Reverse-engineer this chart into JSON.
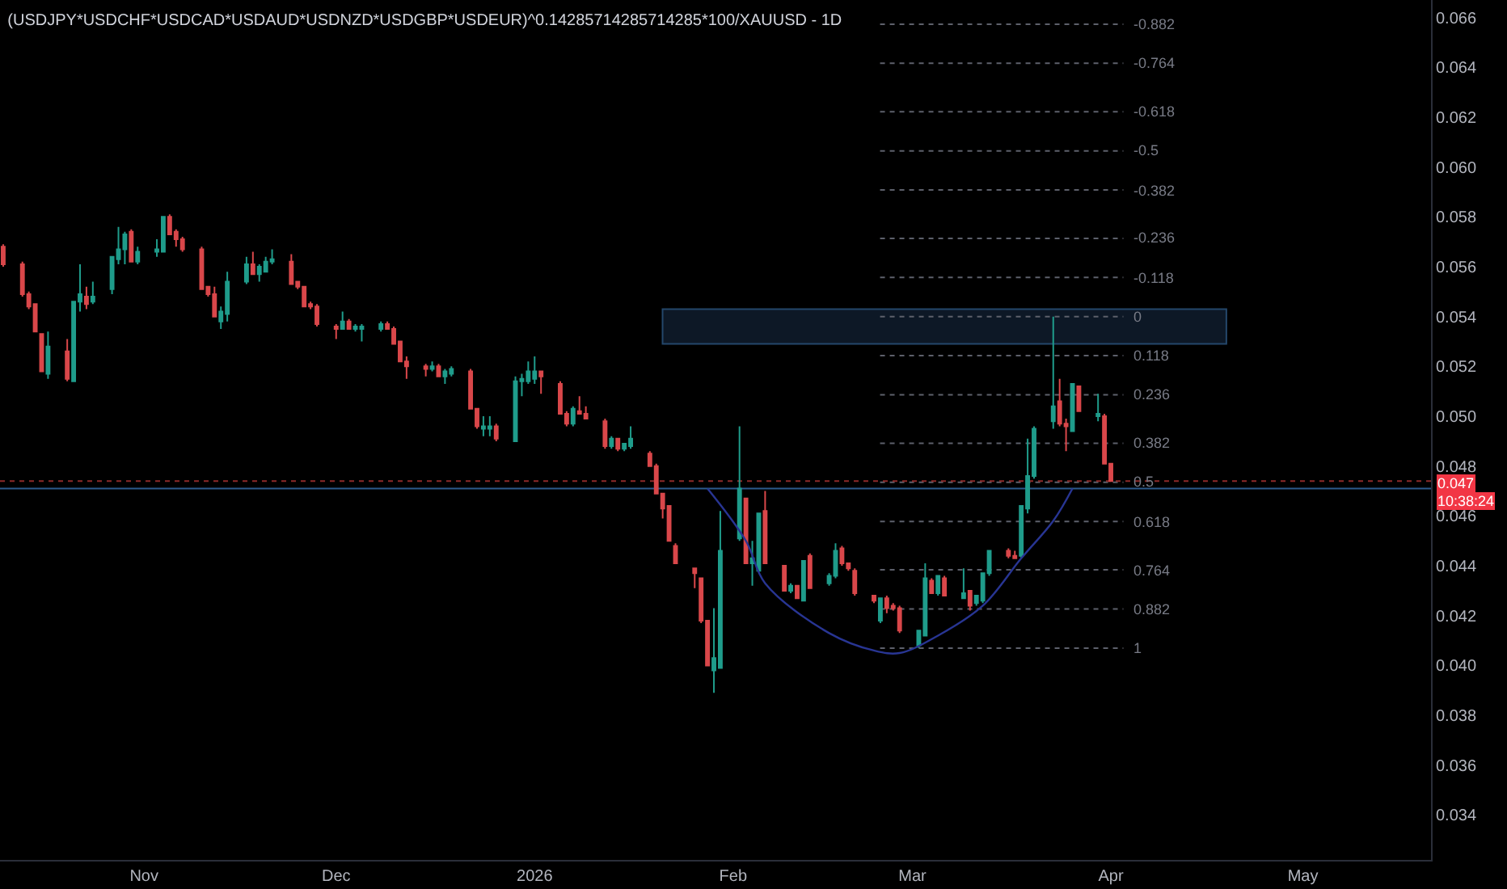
{
  "chart_data": {
    "type": "candlestick",
    "title": "(USDJPY*USDCHF*USDCAD*USDAUD*USDNZD*USDGBP*USDEUR)^0.14285714285714285*100/XAUUSD - 1D",
    "x": [
      "2025-10-10",
      "2025-10-13",
      "2025-10-14",
      "2025-10-15",
      "2025-10-16",
      "2025-10-17",
      "2025-10-20",
      "2025-10-21",
      "2025-10-22",
      "2025-10-23",
      "2025-10-24",
      "2025-10-27",
      "2025-10-28",
      "2025-10-29",
      "2025-10-30",
      "2025-10-31",
      "2025-11-03",
      "2025-11-04",
      "2025-11-05",
      "2025-11-06",
      "2025-11-07",
      "2025-11-10",
      "2025-11-11",
      "2025-11-12",
      "2025-11-13",
      "2025-11-14",
      "2025-11-17",
      "2025-11-18",
      "2025-11-19",
      "2025-11-20",
      "2025-11-21",
      "2025-11-24",
      "2025-11-25",
      "2025-11-26",
      "2025-11-27",
      "2025-11-28",
      "2025-12-01",
      "2025-12-02",
      "2025-12-03",
      "2025-12-04",
      "2025-12-05",
      "2025-12-08",
      "2025-12-09",
      "2025-12-10",
      "2025-12-11",
      "2025-12-12",
      "2025-12-15",
      "2025-12-16",
      "2025-12-17",
      "2025-12-18",
      "2025-12-19",
      "2025-12-22",
      "2025-12-23",
      "2025-12-24",
      "2025-12-25",
      "2025-12-26",
      "2025-12-29",
      "2025-12-30",
      "2025-12-31",
      "2026-01-01",
      "2026-01-02",
      "2026-01-05",
      "2026-01-06",
      "2026-01-07",
      "2026-01-08",
      "2026-01-09",
      "2026-01-12",
      "2026-01-13",
      "2026-01-14",
      "2026-01-15",
      "2026-01-16",
      "2026-01-19",
      "2026-01-20",
      "2026-01-21",
      "2026-01-22",
      "2026-01-23",
      "2026-01-26",
      "2026-01-27",
      "2026-01-28",
      "2026-01-29",
      "2026-01-30",
      "2026-02-02",
      "2026-02-03",
      "2026-02-04",
      "2026-02-05",
      "2026-02-06",
      "2026-02-09",
      "2026-02-10",
      "2026-02-11",
      "2026-02-12",
      "2026-02-13",
      "2026-02-16",
      "2026-02-17",
      "2026-02-18",
      "2026-02-19",
      "2026-02-20",
      "2026-02-23",
      "2026-02-24",
      "2026-02-25",
      "2026-02-26",
      "2026-02-27",
      "2026-03-02",
      "2026-03-03",
      "2026-03-04",
      "2026-03-05",
      "2026-03-06",
      "2026-03-09",
      "2026-03-10",
      "2026-03-11",
      "2026-03-12",
      "2026-03-13",
      "2026-03-16",
      "2026-03-17",
      "2026-03-18",
      "2026-03-19",
      "2026-03-20",
      "2026-03-23",
      "2026-03-24",
      "2026-03-25",
      "2026-03-26",
      "2026-03-27",
      "2026-03-30",
      "2026-03-31",
      "2026-04-01"
    ],
    "ohlc": [
      [
        0.0568,
        0.0569,
        0.056,
        0.0561
      ],
      [
        0.0561,
        0.0562,
        0.0548,
        0.0549
      ],
      [
        0.0549,
        0.055,
        0.0543,
        0.0544
      ],
      [
        0.0545,
        0.0545,
        0.0534,
        0.0534
      ],
      [
        0.0533,
        0.0533,
        0.0518,
        0.0518
      ],
      [
        0.0517,
        0.0534,
        0.0515,
        0.0528
      ],
      [
        0.0526,
        0.0531,
        0.0514,
        0.0515
      ],
      [
        0.0514,
        0.0546,
        0.0514,
        0.0546
      ],
      [
        0.0546,
        0.0561,
        0.0542,
        0.0549
      ],
      [
        0.0548,
        0.0552,
        0.0543,
        0.0545
      ],
      [
        0.0546,
        0.0554,
        0.0545,
        0.0548
      ],
      [
        0.0551,
        0.0564,
        0.0549,
        0.0564
      ],
      [
        0.0563,
        0.0576,
        0.0561,
        0.0567
      ],
      [
        0.0567,
        0.0574,
        0.0561,
        0.0573
      ],
      [
        0.0574,
        0.0575,
        0.0562,
        0.0562
      ],
      [
        0.0562,
        0.0568,
        0.0561,
        0.0566
      ],
      [
        0.0566,
        0.0571,
        0.0564,
        0.0567
      ],
      [
        0.0566,
        0.058,
        0.0566,
        0.058
      ],
      [
        0.058,
        0.0581,
        0.0573,
        0.0573
      ],
      [
        0.0574,
        0.0575,
        0.0568,
        0.0571
      ],
      [
        0.0571,
        0.0572,
        0.0566,
        0.0567
      ],
      [
        0.0567,
        0.0568,
        0.0551,
        0.0551
      ],
      [
        0.0552,
        0.0552,
        0.0548,
        0.0549
      ],
      [
        0.0549,
        0.0552,
        0.054,
        0.054
      ],
      [
        0.0538,
        0.0544,
        0.0535,
        0.0542
      ],
      [
        0.0541,
        0.0558,
        0.0538,
        0.0554
      ],
      [
        0.0554,
        0.0564,
        0.0553,
        0.0561
      ],
      [
        0.0561,
        0.0566,
        0.0557,
        0.0557
      ],
      [
        0.0557,
        0.0561,
        0.0554,
        0.056
      ],
      [
        0.0558,
        0.0564,
        0.0558,
        0.0562
      ],
      [
        0.0562,
        0.0567,
        0.0561,
        0.0563
      ],
      [
        0.0562,
        0.0565,
        0.0553,
        0.0553
      ],
      [
        0.0554,
        0.0554,
        0.0551,
        0.0552
      ],
      [
        0.0552,
        0.0552,
        0.0544,
        0.0544
      ],
      [
        0.0545,
        0.0546,
        0.0543,
        0.0544
      ],
      [
        0.0544,
        0.0545,
        0.0536,
        0.0537
      ],
      [
        0.0536,
        0.0537,
        0.0531,
        0.0535
      ],
      [
        0.0535,
        0.0542,
        0.0535,
        0.0538
      ],
      [
        0.0538,
        0.0539,
        0.0535,
        0.0535
      ],
      [
        0.0535,
        0.0537,
        0.0534,
        0.0536
      ],
      [
        0.0535,
        0.0537,
        0.053,
        0.0536
      ],
      [
        0.0535,
        0.0538,
        0.0534,
        0.0537
      ],
      [
        0.0537,
        0.0538,
        0.0535,
        0.0535
      ],
      [
        0.0535,
        0.0536,
        0.0529,
        0.0529
      ],
      [
        0.053,
        0.053,
        0.0522,
        0.0522
      ],
      [
        0.0522,
        0.0524,
        0.0515,
        0.052
      ],
      [
        0.052,
        0.0521,
        0.0516,
        0.0519
      ],
      [
        0.0519,
        0.0522,
        0.0518,
        0.052
      ],
      [
        0.052,
        0.0521,
        0.0516,
        0.0516
      ],
      [
        0.0516,
        0.0519,
        0.0513,
        0.0518
      ],
      [
        0.0517,
        0.052,
        0.0516,
        0.0519
      ],
      [
        0.0518,
        0.0519,
        0.0503,
        0.0503
      ],
      [
        0.0503,
        0.0503,
        0.0495,
        0.0496
      ],
      [
        0.0495,
        0.05,
        0.0492,
        0.0496
      ],
      [
        0.0495,
        0.05,
        0.0492,
        0.0496
      ],
      [
        0.0496,
        0.0497,
        0.049,
        0.0491
      ],
      [
        0.049,
        0.0516,
        0.049,
        0.0514
      ],
      [
        0.0514,
        0.0517,
        0.0508,
        0.0515
      ],
      [
        0.0514,
        0.0522,
        0.0513,
        0.0518
      ],
      [
        0.0515,
        0.0524,
        0.0513,
        0.0518
      ],
      [
        0.0518,
        0.0518,
        0.0509,
        0.0516
      ],
      [
        0.0513,
        0.0514,
        0.0501,
        0.0501
      ],
      [
        0.0501,
        0.0502,
        0.0496,
        0.0497
      ],
      [
        0.0497,
        0.0504,
        0.0496,
        0.0503
      ],
      [
        0.0502,
        0.0508,
        0.0501,
        0.0501
      ],
      [
        0.0501,
        0.0504,
        0.0499,
        0.0499
      ],
      [
        0.0498,
        0.0499,
        0.0487,
        0.0488
      ],
      [
        0.0488,
        0.0492,
        0.0487,
        0.0491
      ],
      [
        0.0491,
        0.0491,
        0.0486,
        0.0487
      ],
      [
        0.0487,
        0.0489,
        0.0486,
        0.0489
      ],
      [
        0.0488,
        0.0496,
        0.0487,
        0.0491
      ],
      [
        0.0485,
        0.0486,
        0.048,
        0.048
      ],
      [
        0.048,
        0.0481,
        0.0469,
        0.0469
      ],
      [
        0.0469,
        0.0469,
        0.0459,
        0.0463
      ],
      [
        0.0464,
        0.0464,
        0.045,
        0.045
      ],
      [
        0.0448,
        0.0449,
        0.0441,
        0.0441
      ],
      [
        0.0439,
        0.0439,
        0.0431,
        0.0437
      ],
      [
        0.0435,
        0.0435,
        0.0417,
        0.0418
      ],
      [
        0.0418,
        0.0418,
        0.04,
        0.04
      ],
      [
        0.0398,
        0.0423,
        0.0389,
        0.0403
      ],
      [
        0.0399,
        0.0462,
        0.0399,
        0.0446
      ],
      [
        0.0451,
        0.0496,
        0.045,
        0.0471
      ],
      [
        0.0467,
        0.0467,
        0.0441,
        0.0441
      ],
      [
        0.0441,
        0.045,
        0.0432,
        0.0443
      ],
      [
        0.0438,
        0.0461,
        0.0438,
        0.0461
      ],
      [
        0.0462,
        0.047,
        0.0441,
        0.0441
      ],
      [
        0.044,
        0.044,
        0.043,
        0.043
      ],
      [
        0.043,
        0.0433,
        0.0429,
        0.0432
      ],
      [
        0.0432,
        0.0432,
        0.0427,
        0.0427
      ],
      [
        0.0426,
        0.0442,
        0.0426,
        0.0442
      ],
      [
        0.0444,
        0.0445,
        0.0431,
        0.0431
      ],
      [
        0.0433,
        0.0437,
        0.0432,
        0.0436
      ],
      [
        0.0436,
        0.0449,
        0.0435,
        0.0446
      ],
      [
        0.0447,
        0.0448,
        0.044,
        0.0441
      ],
      [
        0.0441,
        0.0441,
        0.0438,
        0.0439
      ],
      [
        0.0438,
        0.0439,
        0.0428,
        0.0429
      ],
      [
        0.0428,
        0.0428,
        0.0425,
        0.0426
      ],
      [
        0.0418,
        0.0427,
        0.0417,
        0.0427
      ],
      [
        0.0427,
        0.0428,
        0.0421,
        0.0423
      ],
      [
        0.0424,
        0.0425,
        0.0422,
        0.0423
      ],
      [
        0.0423,
        0.0424,
        0.0413,
        0.0414
      ],
      [
        0.0408,
        0.0414,
        0.0407,
        0.0414
      ],
      [
        0.0412,
        0.0441,
        0.0412,
        0.0435
      ],
      [
        0.0434,
        0.0435,
        0.0429,
        0.0429
      ],
      [
        0.0429,
        0.0436,
        0.0428,
        0.0436
      ],
      [
        0.0435,
        0.0436,
        0.0428,
        0.0428
      ],
      [
        0.0427,
        0.0439,
        0.0427,
        0.0429
      ],
      [
        0.043,
        0.043,
        0.0422,
        0.0424
      ],
      [
        0.0425,
        0.0428,
        0.0424,
        0.0428
      ],
      [
        0.0426,
        0.0437,
        0.0425,
        0.0437
      ],
      [
        0.0437,
        0.0446,
        0.0436,
        0.0446
      ],
      [
        0.0446,
        0.0447,
        0.0443,
        0.0444
      ],
      [
        0.0444,
        0.0446,
        0.0443,
        0.0443
      ],
      [
        0.0444,
        0.0464,
        0.0443,
        0.0464
      ],
      [
        0.0463,
        0.0491,
        0.0461,
        0.0476
      ],
      [
        0.0476,
        0.0496,
        0.0475,
        0.0495
      ],
      [
        0.0498,
        0.054,
        0.0495,
        0.0504
      ],
      [
        0.0506,
        0.0515,
        0.0496,
        0.0497
      ],
      [
        0.0497,
        0.0499,
        0.0486,
        0.0496
      ],
      [
        0.0494,
        0.0513,
        0.0494,
        0.0513
      ],
      [
        0.0512,
        0.0512,
        0.0502,
        0.0502
      ],
      [
        0.05,
        0.0509,
        0.0498,
        0.0501
      ],
      [
        0.05,
        0.0501,
        0.0481,
        0.0481
      ],
      [
        0.0481,
        0.0481,
        0.0474,
        0.0474
      ]
    ],
    "series": [
      {
        "type": "line",
        "color": "#283593",
        "x": [
          "2026-01-28",
          "2026-02-03",
          "2026-02-06",
          "2026-02-16",
          "2026-02-23",
          "2026-02-27",
          "2026-03-05",
          "2026-03-12",
          "2026-03-18",
          "2026-03-23",
          "2026-03-26"
        ],
        "values": [
          0.0471,
          0.045,
          0.0433,
          0.0413,
          0.0406,
          0.0405,
          0.0412,
          0.0424,
          0.0443,
          0.0458,
          0.0471
        ]
      }
    ],
    "xlim": [
      "2025-10-09T12:00",
      "2026-05-21"
    ],
    "xticks": [
      {
        "value": "2025-11-01",
        "label": "Nov"
      },
      {
        "value": "2025-12-01",
        "label": "Dec"
      },
      {
        "value": "2026-01-01",
        "label": "2026"
      },
      {
        "value": "2026-02-01",
        "label": "Feb"
      },
      {
        "value": "2026-03-01",
        "label": "Mar"
      },
      {
        "value": "2026-04-01",
        "label": "Apr"
      },
      {
        "value": "2026-05-01",
        "label": "May"
      }
    ],
    "ylim": [
      0.0322,
      0.0667
    ],
    "y2lim": [
      1.639,
      -0.955
    ],
    "yticks": [
      0.034,
      0.036,
      0.038,
      {
        "value": 0.04,
        "label": "0.040"
      },
      0.042,
      0.044,
      0.046,
      0.048,
      {
        "value": 0.05,
        "label": "0.050"
      },
      0.052,
      0.054,
      0.056,
      0.058,
      {
        "value": 0.06,
        "label": "0.060"
      },
      0.062,
      0.064,
      0.066
    ],
    "ref_lines": [
      {
        "axis": "y2",
        "value": -0.882,
        "label": "-0.882",
        "color": "#5d606b",
        "line_style": "dotted"
      },
      {
        "axis": "y2",
        "value": -0.764,
        "label": "-0.764",
        "color": "#5d606b",
        "line_style": "dotted"
      },
      {
        "axis": "y2",
        "value": -0.618,
        "label": "-0.618",
        "color": "#5d606b",
        "line_style": "dotted"
      },
      {
        "axis": "y2",
        "value": -0.5,
        "label": "-0.5",
        "color": "#5d606b",
        "line_style": "dotted"
      },
      {
        "axis": "y2",
        "value": -0.382,
        "label": "-0.382",
        "color": "#5d606b",
        "line_style": "dotted"
      },
      {
        "axis": "y2",
        "value": -0.236,
        "label": "-0.236",
        "color": "#5d606b",
        "line_style": "dotted"
      },
      {
        "axis": "y2",
        "value": -0.118,
        "label": "-0.118",
        "color": "#5d606b",
        "line_style": "dotted"
      },
      {
        "axis": "y2",
        "value": 0,
        "label": "0",
        "color": "#5d606b",
        "line_style": "dotted"
      },
      {
        "axis": "y2",
        "value": 0.118,
        "label": "0.118",
        "color": "#5d606b",
        "line_style": "dotted"
      },
      {
        "axis": "y2",
        "value": 0.236,
        "label": "0.236",
        "color": "#5d606b",
        "line_style": "dotted"
      },
      {
        "axis": "y2",
        "value": 0.382,
        "label": "0.382",
        "color": "#5d606b",
        "line_style": "dotted"
      },
      {
        "axis": "y2",
        "value": 0.5,
        "label": "0.5",
        "color": "#5d606b",
        "line_style": "dotted"
      },
      {
        "axis": "y2",
        "value": 0.618,
        "label": "0.618",
        "color": "#5d606b",
        "line_style": "dotted"
      },
      {
        "axis": "y2",
        "value": 0.764,
        "label": "0.764",
        "color": "#5d606b",
        "line_style": "dotted"
      },
      {
        "axis": "y2",
        "value": 0.882,
        "label": "0.882",
        "color": "#5d606b",
        "line_style": "dotted"
      },
      {
        "axis": "y2",
        "value": 1,
        "label": "1",
        "color": "#5d606b",
        "line_style": "dotted"
      },
      {
        "axis": "y",
        "value": 0.0471,
        "color": "#2c5a8c",
        "line_style": "solid"
      },
      {
        "axis": "y",
        "value": 0.0474,
        "color": "#8c2a2a",
        "line_style": "dotted"
      }
    ],
    "bands": [
      {
        "axis": "y",
        "from": 0.0529,
        "to": 0.0543,
        "color": "#0d1826"
      }
    ],
    "annotations": [
      "0.047",
      "10:38:24"
    ]
  }
}
